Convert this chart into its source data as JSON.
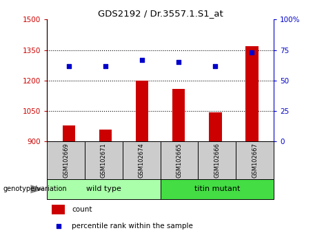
{
  "title": "GDS2192 / Dr.3557.1.S1_at",
  "samples": [
    "GSM102669",
    "GSM102671",
    "GSM102674",
    "GSM102665",
    "GSM102666",
    "GSM102667"
  ],
  "counts": [
    980,
    960,
    1200,
    1160,
    1045,
    1370
  ],
  "percentiles": [
    62,
    62,
    67,
    65,
    62,
    73
  ],
  "groups": [
    "wild type",
    "titin mutant"
  ],
  "group_colors": [
    "#aaffaa",
    "#44dd44"
  ],
  "bar_color": "#cc0000",
  "dot_color": "#0000cc",
  "left_ylim": [
    900,
    1500
  ],
  "left_yticks": [
    900,
    1050,
    1200,
    1350,
    1500
  ],
  "right_ylim": [
    0,
    100
  ],
  "right_yticks": [
    0,
    25,
    50,
    75,
    100
  ],
  "right_yticklabels": [
    "0",
    "25",
    "50",
    "75",
    "100%"
  ],
  "left_tick_color": "#cc0000",
  "right_tick_color": "#0000cc",
  "grid_yticks": [
    1050,
    1200,
    1350
  ],
  "genotype_label": "genotype/variation",
  "legend_count_label": "count",
  "legend_pct_label": "percentile rank within the sample",
  "bar_width": 0.35,
  "x_positions": [
    0,
    1,
    2,
    3,
    4,
    5
  ],
  "sample_box_color": "#cccccc",
  "plot_bg_color": "#ffffff",
  "fig_bg_color": "#ffffff"
}
